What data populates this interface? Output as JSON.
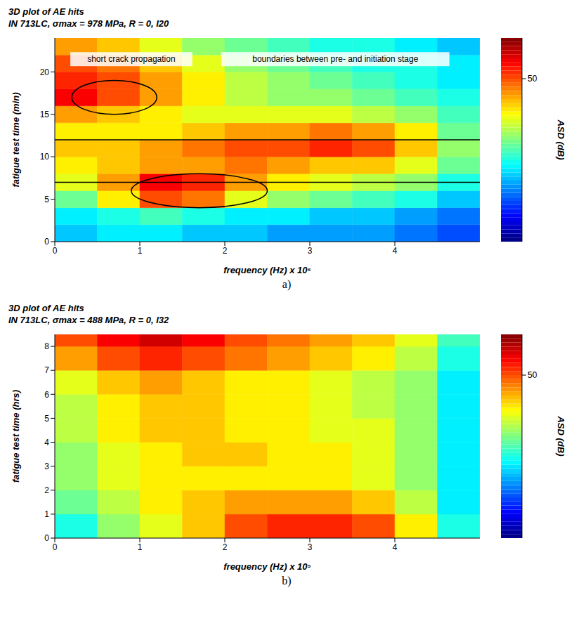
{
  "chart_data": [
    {
      "type": "heatmap",
      "panel": "a)",
      "title": "3D plot of AE hits",
      "subtitle": "IN 713LC, σmax = 978 MPa, R = 0, I20",
      "xlabel": "frequency (Hz) x 10⁵",
      "ylabel": "fatigue test time (min)",
      "xlim": [
        0,
        5
      ],
      "xticks": [
        0,
        1,
        2,
        3,
        4
      ],
      "ylim": [
        0,
        24
      ],
      "yticks": [
        0,
        5,
        10,
        15,
        20
      ],
      "x_bins": [
        0,
        0.5,
        1,
        1.5,
        2,
        2.5,
        3,
        3.5,
        4,
        4.5,
        5
      ],
      "y_bins": [
        0,
        2,
        4,
        6,
        8,
        10,
        12,
        14,
        16,
        18,
        20,
        22,
        24
      ],
      "z": [
        [
          38,
          39,
          39,
          38,
          38,
          37,
          37,
          37,
          36,
          35
        ],
        [
          39,
          40,
          41,
          40,
          39,
          39,
          38,
          38,
          37,
          36
        ],
        [
          42,
          46,
          50,
          49,
          45,
          43,
          42,
          41,
          40,
          38
        ],
        [
          45,
          48,
          52,
          51,
          48,
          46,
          45,
          44,
          43,
          40
        ],
        [
          46,
          47,
          48,
          48,
          49,
          48,
          47,
          47,
          45,
          42
        ],
        [
          47,
          47,
          48,
          49,
          50,
          50,
          51,
          50,
          47,
          43
        ],
        [
          46,
          46,
          46,
          47,
          48,
          48,
          49,
          48,
          46,
          42
        ],
        [
          48,
          47,
          46,
          45,
          45,
          45,
          45,
          44,
          43,
          41
        ],
        [
          52,
          50,
          48,
          46,
          44,
          43,
          43,
          42,
          41,
          40
        ],
        [
          51,
          50,
          48,
          46,
          44,
          43,
          42,
          41,
          40,
          39
        ],
        [
          50,
          49,
          47,
          45,
          43,
          42,
          41,
          40,
          40,
          39
        ],
        [
          48,
          47,
          45,
          43,
          42,
          41,
          40,
          40,
          39,
          38
        ]
      ],
      "zlabel": "ASD (dB)",
      "zlim": [
        30,
        55
      ],
      "zticks": [
        50
      ],
      "boundaries": [
        7,
        12
      ],
      "regions": [
        {
          "x": 0.7,
          "y": 17,
          "rx": 0.5,
          "ry": 2
        },
        {
          "x": 1.7,
          "y": 6,
          "rx": 0.8,
          "ry": 2
        }
      ],
      "annotations": [
        {
          "text": "short crack propagation",
          "x": 0.9,
          "y": 21.5
        },
        {
          "text": "boundaries between pre- and initiation stage",
          "x": 3.3,
          "y": 21.5
        }
      ]
    },
    {
      "type": "heatmap",
      "panel": "b)",
      "title": "3D plot of AE hits",
      "subtitle": "IN 713LC, σmax = 488 MPa, R = 0, I32",
      "xlabel": "frequency (Hz) x 10⁵",
      "ylabel": "fatigue test time (hrs)",
      "xlim": [
        0,
        5
      ],
      "xticks": [
        0,
        1,
        2,
        3,
        4
      ],
      "ylim": [
        0,
        8.5
      ],
      "yticks": [
        0,
        1,
        2,
        3,
        4,
        5,
        6,
        7,
        8
      ],
      "x_bins": [
        0,
        0.5,
        1,
        1.5,
        2,
        2.5,
        3,
        3.5,
        4,
        4.5,
        5
      ],
      "y_bins": [
        0,
        1,
        2,
        3,
        4,
        5,
        6,
        7,
        8,
        8.5
      ],
      "z": [
        [
          40,
          43,
          45,
          47,
          50,
          51,
          51,
          50,
          46,
          40
        ],
        [
          42,
          44,
          46,
          47,
          48,
          48,
          48,
          47,
          44,
          39
        ],
        [
          43,
          45,
          46,
          46,
          46,
          46,
          46,
          45,
          43,
          39
        ],
        [
          43,
          45,
          46,
          47,
          47,
          46,
          46,
          45,
          43,
          39
        ],
        [
          44,
          46,
          47,
          47,
          46,
          46,
          45,
          45,
          43,
          39
        ],
        [
          44,
          46,
          47,
          47,
          46,
          46,
          45,
          44,
          43,
          39
        ],
        [
          45,
          47,
          48,
          47,
          46,
          46,
          45,
          44,
          43,
          39
        ],
        [
          48,
          50,
          51,
          50,
          49,
          48,
          47,
          46,
          44,
          40
        ],
        [
          50,
          52,
          53,
          52,
          50,
          49,
          48,
          47,
          45,
          41
        ]
      ],
      "zlabel": "ASD (dB)",
      "zlim": [
        30,
        55
      ],
      "zticks": [
        50
      ]
    }
  ]
}
